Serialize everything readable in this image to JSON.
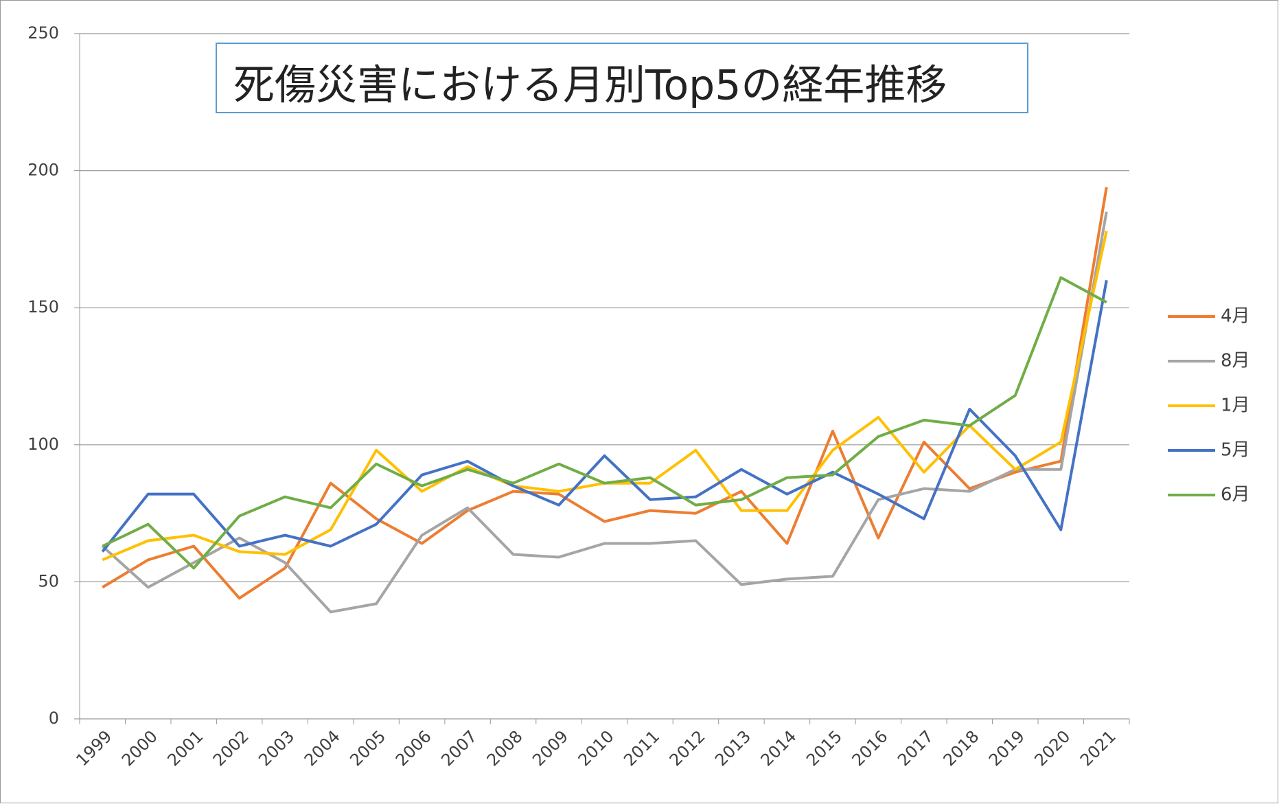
{
  "chart_data": {
    "type": "line",
    "title": "死傷災害における月別Top5の経年推移",
    "categories": [
      "1999",
      "2000",
      "2001",
      "2002",
      "2003",
      "2004",
      "2005",
      "2006",
      "2007",
      "2008",
      "2009",
      "2010",
      "2011",
      "2012",
      "2013",
      "2014",
      "2015",
      "2016",
      "2017",
      "2018",
      "2019",
      "2020",
      "2021"
    ],
    "series": [
      {
        "name": "4月",
        "color": "#ed7d31",
        "values": [
          48,
          58,
          63,
          44,
          55,
          86,
          73,
          64,
          76,
          83,
          82,
          72,
          76,
          75,
          83,
          64,
          105,
          66,
          101,
          84,
          90,
          94,
          194
        ]
      },
      {
        "name": "8月",
        "color": "#a5a5a5",
        "values": [
          63,
          48,
          57,
          66,
          57,
          39,
          42,
          67,
          77,
          60,
          59,
          64,
          64,
          65,
          49,
          51,
          52,
          80,
          84,
          83,
          91,
          91,
          185
        ]
      },
      {
        "name": "1月",
        "color": "#ffc000",
        "values": [
          58,
          65,
          67,
          61,
          60,
          69,
          98,
          83,
          92,
          85,
          83,
          86,
          86,
          98,
          76,
          76,
          98,
          110,
          90,
          107,
          91,
          101,
          178
        ]
      },
      {
        "name": "5月",
        "color": "#4472c4",
        "values": [
          61,
          82,
          82,
          63,
          67,
          63,
          71,
          89,
          94,
          85,
          78,
          96,
          80,
          81,
          91,
          82,
          90,
          82,
          73,
          113,
          96,
          69,
          160
        ]
      },
      {
        "name": "6月",
        "color": "#70ad47",
        "values": [
          63,
          71,
          55,
          74,
          81,
          77,
          93,
          85,
          91,
          86,
          93,
          86,
          88,
          78,
          80,
          88,
          89,
          103,
          109,
          107,
          118,
          161,
          152
        ]
      }
    ],
    "ylim": [
      0,
      250
    ],
    "yticks": [
      0,
      50,
      100,
      150,
      200,
      250
    ],
    "grid": true,
    "legend": "right"
  }
}
